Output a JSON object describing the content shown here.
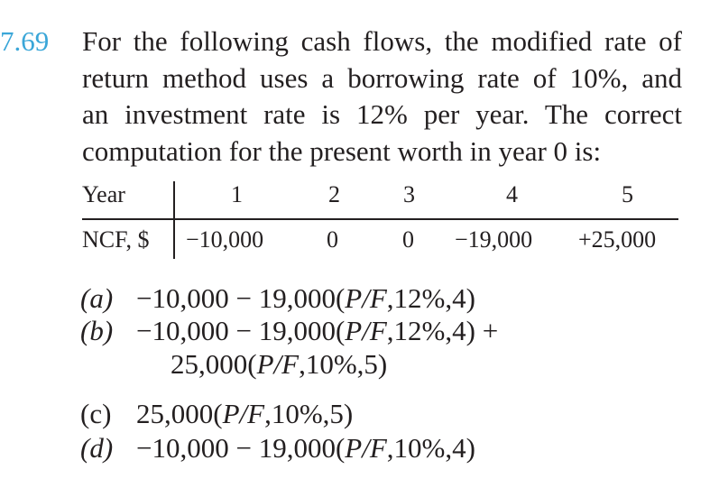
{
  "problem": {
    "number": "7.69",
    "lines": [
      "For the following cash flows, the modified rate of",
      "return method uses a borrowing rate of 10%, and",
      "an investment rate is 12% per year. The correct",
      "computation for the present worth in year 0 is:"
    ]
  },
  "table": {
    "header": {
      "label": "Year",
      "values": [
        "1",
        "2",
        "3",
        "4",
        "5"
      ]
    },
    "row": {
      "label": "NCF, $",
      "values": [
        "−10,000",
        "0",
        "0",
        "−19,000",
        "+25,000"
      ]
    }
  },
  "options": [
    {
      "label": "(a)",
      "parts": [
        "−10,000 − 19,000(",
        "P/F",
        ",12%,4)"
      ]
    },
    {
      "label": "(b)",
      "parts": [
        "−10,000 − 19,000(",
        "P/F",
        ",12%,4) +"
      ],
      "continuation": [
        "25,000(",
        "P/F",
        ",10%,5)"
      ]
    },
    {
      "label": "(c)",
      "parts": [
        "25,000(",
        "P/F",
        ",10%,5)"
      ]
    },
    {
      "label": "(d)",
      "parts": [
        "−10,000 − 19,000(",
        "P/F",
        ",10%,4)"
      ]
    }
  ]
}
